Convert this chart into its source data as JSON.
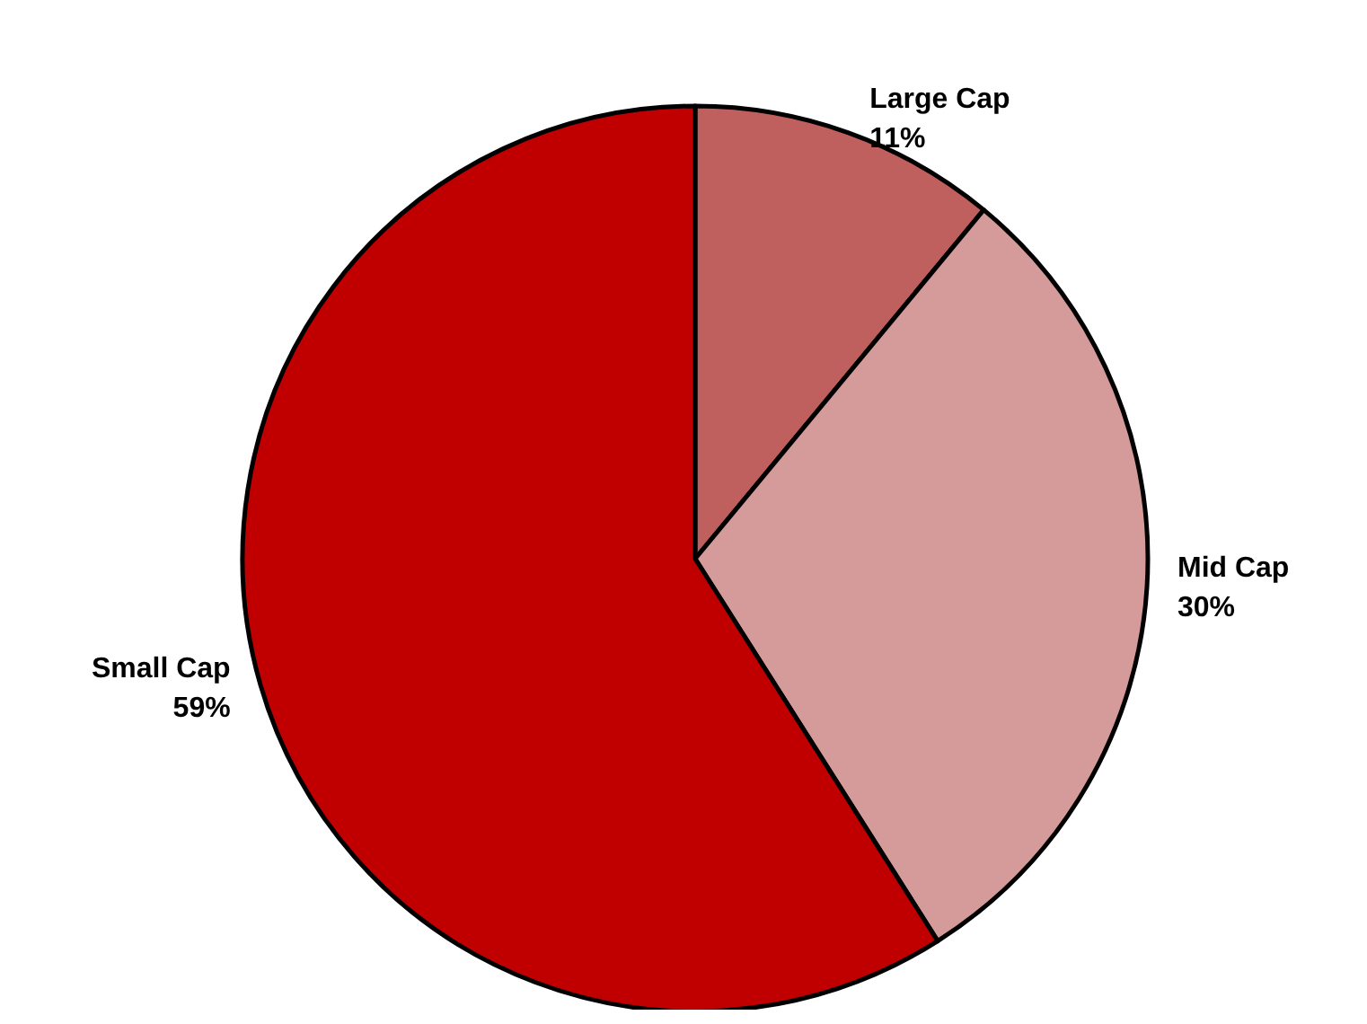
{
  "chart_data": {
    "type": "pie",
    "categories": [
      "Large Cap",
      "Mid Cap",
      "Small Cap"
    ],
    "values": [
      11,
      30,
      59
    ],
    "value_labels": [
      "11%",
      "30%",
      "59%"
    ],
    "colors": [
      "#c0605e",
      "#d59b9a",
      "#c00000"
    ],
    "legend": false
  }
}
